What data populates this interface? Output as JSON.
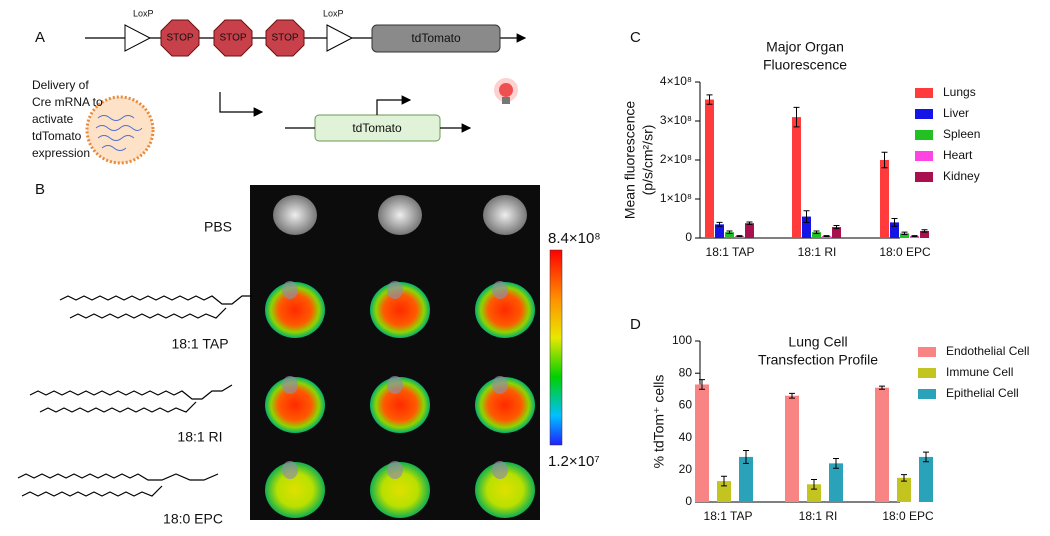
{
  "panels": {
    "a": {
      "label": "A",
      "loxp_1": "LoxP",
      "stop_1": "STOP",
      "stop_2": "STOP",
      "stop_3": "STOP",
      "loxp_2": "LoxP",
      "reporter": "tdTomato",
      "delivery_text": [
        "Delivery of",
        "Cre mRNA to",
        "activate",
        "tdTomato",
        "expression"
      ],
      "active_reporter": "tdTomato"
    },
    "b": {
      "label": "B",
      "rows": [
        "PBS",
        "18:1 TAP",
        "18:1 RI",
        "18:0 EPC"
      ],
      "colorbar_max": "8.4×10⁸",
      "colorbar_min": "1.2×10⁷"
    },
    "c": {
      "label": "C"
    },
    "d": {
      "label": "D"
    }
  },
  "chart_data": [
    {
      "type": "bar",
      "title": [
        "Major Organ",
        "Fluorescence"
      ],
      "ylabel": [
        "Mean fluorescence",
        "(p/s/cm²/sr)"
      ],
      "categories": [
        "18:1 TAP",
        "18:1 RI",
        "18:0 EPC"
      ],
      "series": [
        {
          "name": "Lungs",
          "color": "#ff3b3b",
          "values": [
            355000000,
            310000000,
            200000000
          ],
          "errors": [
            12000000,
            25000000,
            20000000
          ]
        },
        {
          "name": "Liver",
          "color": "#1414e6",
          "values": [
            35000000,
            55000000,
            40000000
          ],
          "errors": [
            5000000,
            15000000,
            10000000
          ]
        },
        {
          "name": "Spleen",
          "color": "#22c022",
          "values": [
            15000000,
            15000000,
            12000000
          ],
          "errors": [
            3000000,
            3000000,
            3000000
          ]
        },
        {
          "name": "Heart",
          "color": "#ff44e4",
          "values": [
            5000000,
            5000000,
            5000000
          ],
          "errors": [
            1000000,
            1000000,
            1000000
          ]
        },
        {
          "name": "Kidney",
          "color": "#a8104e",
          "values": [
            38000000,
            28000000,
            18000000
          ],
          "errors": [
            3000000,
            4000000,
            3000000
          ]
        }
      ],
      "ylim": [
        0,
        400000000
      ],
      "yticks": [
        0,
        {
          "value": 100000000,
          "label": "1×10⁸"
        },
        {
          "value": 200000000,
          "label": "2×10⁸"
        },
        {
          "value": 300000000,
          "label": "3×10⁸"
        },
        {
          "value": 400000000,
          "label": "4×10⁸"
        }
      ],
      "legend": "right"
    },
    {
      "type": "bar",
      "title": [
        "Lung Cell",
        "Transfection Profile"
      ],
      "ylabel": [
        "% tdTom⁺ cells"
      ],
      "categories": [
        "18:1 TAP",
        "18:1 RI",
        "18:0 EPC"
      ],
      "series": [
        {
          "name": "Endothelial Cell",
          "color": "#f88484",
          "values": [
            73,
            66,
            71
          ],
          "errors": [
            3,
            1.5,
            1
          ]
        },
        {
          "name": "Immune Cell",
          "color": "#c4c420",
          "values": [
            13,
            11,
            15
          ],
          "errors": [
            3,
            3,
            2
          ]
        },
        {
          "name": "Epithelial Cell",
          "color": "#2aa2ba",
          "values": [
            28,
            24,
            28
          ],
          "errors": [
            4,
            3,
            3
          ]
        }
      ],
      "ylim": [
        0,
        100
      ],
      "yticks": [
        0,
        20,
        40,
        60,
        80,
        100
      ],
      "legend": "right"
    }
  ]
}
